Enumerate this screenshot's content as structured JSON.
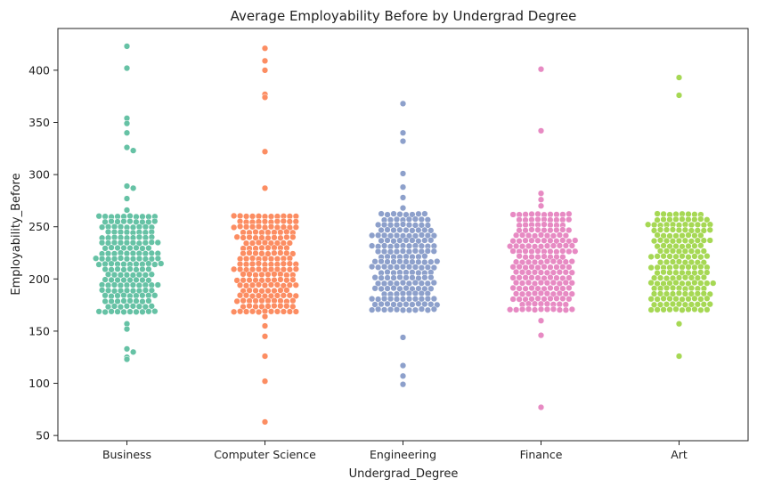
{
  "chart_data": {
    "type": "scatter",
    "subtype": "swarm",
    "title": "Average Employability Before by Undergrad Degree",
    "xlabel": "Undergrad_Degree",
    "ylabel": "Employability_Before",
    "ylim": [
      45,
      440
    ],
    "yticks": [
      50,
      100,
      150,
      200,
      250,
      300,
      350,
      400
    ],
    "grid": false,
    "categories": [
      "Business",
      "Computer Science",
      "Engineering",
      "Finance",
      "Art"
    ],
    "colors": [
      "#66c2a5",
      "#fc8d62",
      "#8da0cb",
      "#e78ac3",
      "#a6d854"
    ],
    "series": [
      {
        "category": "Business",
        "bulk_range": [
          165,
          260
        ],
        "outliers": [
          423,
          402,
          354,
          349,
          340,
          326,
          323,
          289,
          287,
          277,
          266,
          157,
          152,
          133,
          130,
          125,
          123
        ]
      },
      {
        "category": "Computer Science",
        "bulk_range": [
          168,
          260
        ],
        "outliers": [
          421,
          409,
          400,
          377,
          374,
          322,
          287,
          164,
          155,
          145,
          126,
          102,
          63
        ]
      },
      {
        "category": "Engineering",
        "bulk_range": [
          168,
          262
        ],
        "outliers": [
          368,
          340,
          332,
          301,
          288,
          278,
          268,
          144,
          117,
          107,
          99
        ]
      },
      {
        "category": "Finance",
        "bulk_range": [
          170,
          262
        ],
        "outliers": [
          401,
          342,
          282,
          276,
          270,
          160,
          146,
          77
        ]
      },
      {
        "category": "Art",
        "bulk_range": [
          170,
          262
        ],
        "outliers": [
          393,
          376,
          157,
          126
        ]
      }
    ]
  }
}
